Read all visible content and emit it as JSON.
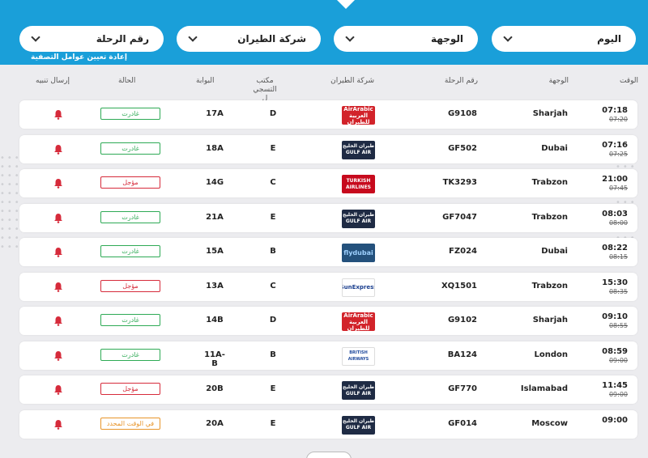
{
  "filters": {
    "day": "اليوم",
    "destination": "الوجهة",
    "airline": "شركة الطيران",
    "flight_number": "رقم الرحلة",
    "reset": "إعادة تعيين عوامل التصفية"
  },
  "headers": {
    "time": "الوقت",
    "destination": "الوجهة",
    "flight_no": "رقم الرحلة",
    "airline": "شركة الطيران",
    "checkin_line1": "مكتب التسجي",
    "checkin_line2": "ل",
    "gate": "البوابة",
    "status": "الحالة",
    "alert": "إرسال تنبيه"
  },
  "colors": {
    "accent": "#1a9fd9",
    "departed": "#2eaa55",
    "delayed": "#d62b3b",
    "on_time": "#e8952a",
    "bell": "#d62b3b"
  },
  "rows": [
    {
      "time": "07:18",
      "old_time": "07:20",
      "destination": "Sharjah",
      "flight": "G9108",
      "airline_logo": "AirArabia",
      "airline_logo_text": "AirArabic العربية للطيران",
      "counter": "D",
      "gate": "17A",
      "status": "غادرت",
      "status_type": "departed"
    },
    {
      "time": "07:16",
      "old_time": "07:25",
      "destination": "Dubai",
      "flight": "GF502",
      "airline_logo": "Gulf Air",
      "airline_logo_text": "طيران الخليج GULF AIR",
      "counter": "E",
      "gate": "18A",
      "status": "غادرت",
      "status_type": "departed"
    },
    {
      "time": "21:00",
      "old_time": "07:45",
      "destination": "Trabzon",
      "flight": "TK3293",
      "airline_logo": "Turkish Airlines",
      "airline_logo_text": "TURKISH AIRLINES",
      "counter": "C",
      "gate": "14G",
      "status": "مؤجل",
      "status_type": "delayed"
    },
    {
      "time": "08:03",
      "old_time": "08:00",
      "destination": "Trabzon",
      "flight": "GF7047",
      "airline_logo": "Gulf Air",
      "airline_logo_text": "طيران الخليج GULF AIR",
      "counter": "E",
      "gate": "21A",
      "status": "غادرت",
      "status_type": "departed"
    },
    {
      "time": "08:22",
      "old_time": "08:15",
      "destination": "Dubai",
      "flight": "FZ024",
      "airline_logo": "flydubai",
      "airline_logo_text": "flydubai",
      "counter": "B",
      "gate": "15A",
      "status": "غادرت",
      "status_type": "departed"
    },
    {
      "time": "15:30",
      "old_time": "08:35",
      "destination": "Trabzon",
      "flight": "XQ1501",
      "airline_logo": "SunExpress",
      "airline_logo_text": "SunExpress",
      "counter": "C",
      "gate": "13A",
      "status": "مؤجل",
      "status_type": "delayed"
    },
    {
      "time": "09:10",
      "old_time": "08:55",
      "destination": "Sharjah",
      "flight": "G9102",
      "airline_logo": "AirArabia",
      "airline_logo_text": "AirArabic العربية للطيران",
      "counter": "D",
      "gate": "14B",
      "status": "غادرت",
      "status_type": "departed"
    },
    {
      "time": "08:59",
      "old_time": "09:00",
      "destination": "London",
      "flight": "BA124",
      "airline_logo": "British Airways",
      "airline_logo_text": "BRITISH AIRWAYS",
      "counter": "B",
      "gate": "11A-B",
      "status": "غادرت",
      "status_type": "departed"
    },
    {
      "time": "11:45",
      "old_time": "09:00",
      "destination": "Islamabad",
      "flight": "GF770",
      "airline_logo": "Gulf Air",
      "airline_logo_text": "طيران الخليج GULF AIR",
      "counter": "E",
      "gate": "20B",
      "status": "مؤجل",
      "status_type": "delayed"
    },
    {
      "time": "09:00",
      "old_time": "",
      "destination": "Moscow",
      "flight": "GF014",
      "airline_logo": "Gulf Air",
      "airline_logo_text": "طيران الخليج GULF AIR",
      "counter": "E",
      "gate": "20A",
      "status": "في الوقت المحدد",
      "status_type": "on_time"
    }
  ]
}
